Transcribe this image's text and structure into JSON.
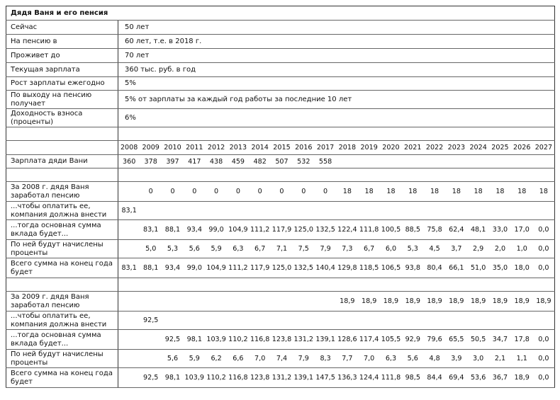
{
  "title": "Дядя Ваня и его пенсия",
  "params": [
    {
      "label": "Сейчас",
      "value": "50 лет"
    },
    {
      "label": "На пенсию в",
      "value": "60 лет, т.е. в 2018 г."
    },
    {
      "label": "Проживет до",
      "value": "70 лет"
    },
    {
      "label": "Текущая зарплата",
      "value": "360 тыс. руб. в год"
    },
    {
      "label": "Рост зарплаты ежегодно",
      "value": "5%"
    },
    {
      "label": "По выходу на пенсию получает",
      "value": "5% от зарплаты за каждый год работы за последние 10 лет"
    },
    {
      "label": "Доходность взноса (проценты)",
      "value": "6%"
    }
  ],
  "years": [
    "2008",
    "2009",
    "2010",
    "2011",
    "2012",
    "2013",
    "2014",
    "2015",
    "2016",
    "2017",
    "2018",
    "2019",
    "2020",
    "2021",
    "2022",
    "2023",
    "2024",
    "2025",
    "2026",
    "2027"
  ],
  "salary": {
    "label": "Зарплата дяди Вани",
    "values": [
      "360",
      "378",
      "397",
      "417",
      "438",
      "459",
      "482",
      "507",
      "532",
      "558",
      "",
      "",
      "",
      "",
      "",
      "",
      "",
      "",
      "",
      ""
    ]
  },
  "blocks": [
    {
      "rows": [
        {
          "label": "За 2008 г. дядя Ваня заработал пенсию",
          "values": [
            "",
            "0",
            "0",
            "0",
            "0",
            "0",
            "0",
            "0",
            "0",
            "0",
            "18",
            "18",
            "18",
            "18",
            "18",
            "18",
            "18",
            "18",
            "18",
            "18"
          ]
        },
        {
          "label": "...чтобы оплатить ее, компания должна внести",
          "values": [
            "83,1",
            "",
            "",
            "",
            "",
            "",
            "",
            "",
            "",
            "",
            "",
            "",
            "",
            "",
            "",
            "",
            "",
            "",
            "",
            ""
          ]
        },
        {
          "label": "...тогда основная сумма вклада будет...",
          "values": [
            "",
            "83,1",
            "88,1",
            "93,4",
            "99,0",
            "104,9",
            "111,2",
            "117,9",
            "125,0",
            "132,5",
            "122,4",
            "111,8",
            "100,5",
            "88,5",
            "75,8",
            "62,4",
            "48,1",
            "33,0",
            "17,0",
            "0,0"
          ]
        },
        {
          "label": "По ней будут начислены проценты",
          "values": [
            "",
            "5,0",
            "5,3",
            "5,6",
            "5,9",
            "6,3",
            "6,7",
            "7,1",
            "7,5",
            "7,9",
            "7,3",
            "6,7",
            "6,0",
            "5,3",
            "4,5",
            "3,7",
            "2,9",
            "2,0",
            "1,0",
            "0,0"
          ]
        },
        {
          "label": "Всего сумма на конец года будет",
          "values": [
            "83,1",
            "88,1",
            "93,4",
            "99,0",
            "104,9",
            "111,2",
            "117,9",
            "125,0",
            "132,5",
            "140,4",
            "129,8",
            "118,5",
            "106,5",
            "93,8",
            "80,4",
            "66,1",
            "51,0",
            "35,0",
            "18,0",
            "0,0"
          ]
        }
      ]
    },
    {
      "rows": [
        {
          "label": "За 2009 г. дядя Ваня заработал пенсию",
          "values": [
            "",
            "",
            "",
            "",
            "",
            "",
            "",
            "",
            "",
            "",
            "18,9",
            "18,9",
            "18,9",
            "18,9",
            "18,9",
            "18,9",
            "18,9",
            "18,9",
            "18,9",
            "18,9"
          ]
        },
        {
          "label": "...чтобы оплатить ее, компания должна внести",
          "values": [
            "",
            "92,5",
            "",
            "",
            "",
            "",
            "",
            "",
            "",
            "",
            "",
            "",
            "",
            "",
            "",
            "",
            "",
            "",
            "",
            ""
          ]
        },
        {
          "label": "...тогда основная сумма вклада будет...",
          "values": [
            "",
            "",
            "92,5",
            "98,1",
            "103,9",
            "110,2",
            "116,8",
            "123,8",
            "131,2",
            "139,1",
            "128,6",
            "117,4",
            "105,5",
            "92,9",
            "79,6",
            "65,5",
            "50,5",
            "34,7",
            "17,8",
            "0,0"
          ]
        },
        {
          "label": "По ней будут начислены проценты",
          "values": [
            "",
            "",
            "5,6",
            "5,9",
            "6,2",
            "6,6",
            "7,0",
            "7,4",
            "7,9",
            "8,3",
            "7,7",
            "7,0",
            "6,3",
            "5,6",
            "4,8",
            "3,9",
            "3,0",
            "2,1",
            "1,1",
            "0,0"
          ]
        },
        {
          "label": "Всего сумма на конец года будет",
          "values": [
            "",
            "92,5",
            "98,1",
            "103,9",
            "110,2",
            "116,8",
            "123,8",
            "131,2",
            "139,1",
            "147,5",
            "136,3",
            "124,4",
            "111,8",
            "98,5",
            "84,4",
            "69,4",
            "53,6",
            "36,7",
            "18,9",
            "0,0"
          ]
        }
      ]
    }
  ]
}
